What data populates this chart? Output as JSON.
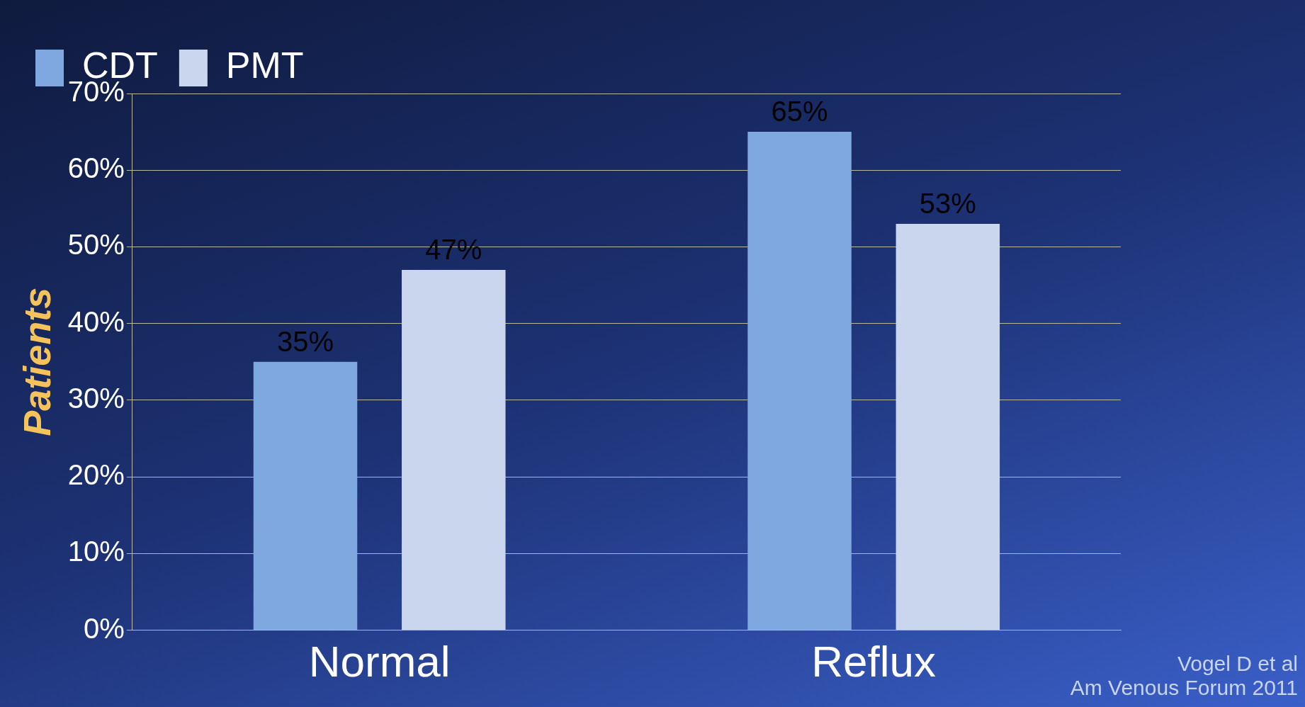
{
  "chart_data": {
    "type": "bar",
    "categories": [
      "Normal",
      "Reflux"
    ],
    "series": [
      {
        "name": "CDT",
        "color": "#7fa7e0",
        "values": [
          35,
          65
        ]
      },
      {
        "name": "PMT",
        "color": "#c9d6ee",
        "values": [
          47,
          53
        ]
      }
    ],
    "ylabel": "Patients",
    "ylim": [
      0,
      70
    ],
    "yticks": [
      {
        "value": 0,
        "label": "0%"
      },
      {
        "value": 10,
        "label": "10%"
      },
      {
        "value": 20,
        "label": "20%"
      },
      {
        "value": 30,
        "label": "30%"
      },
      {
        "value": 40,
        "label": "40%"
      },
      {
        "value": 50,
        "label": "50%"
      },
      {
        "value": 60,
        "label": "60%"
      },
      {
        "value": 70,
        "label": "70%"
      }
    ],
    "value_labels": [
      "35%",
      "65%",
      "47%",
      "53%"
    ],
    "grid": "y",
    "legend": "top left",
    "annotations": [
      "Vogel D et al\nAm Venous Forum 2011"
    ]
  }
}
